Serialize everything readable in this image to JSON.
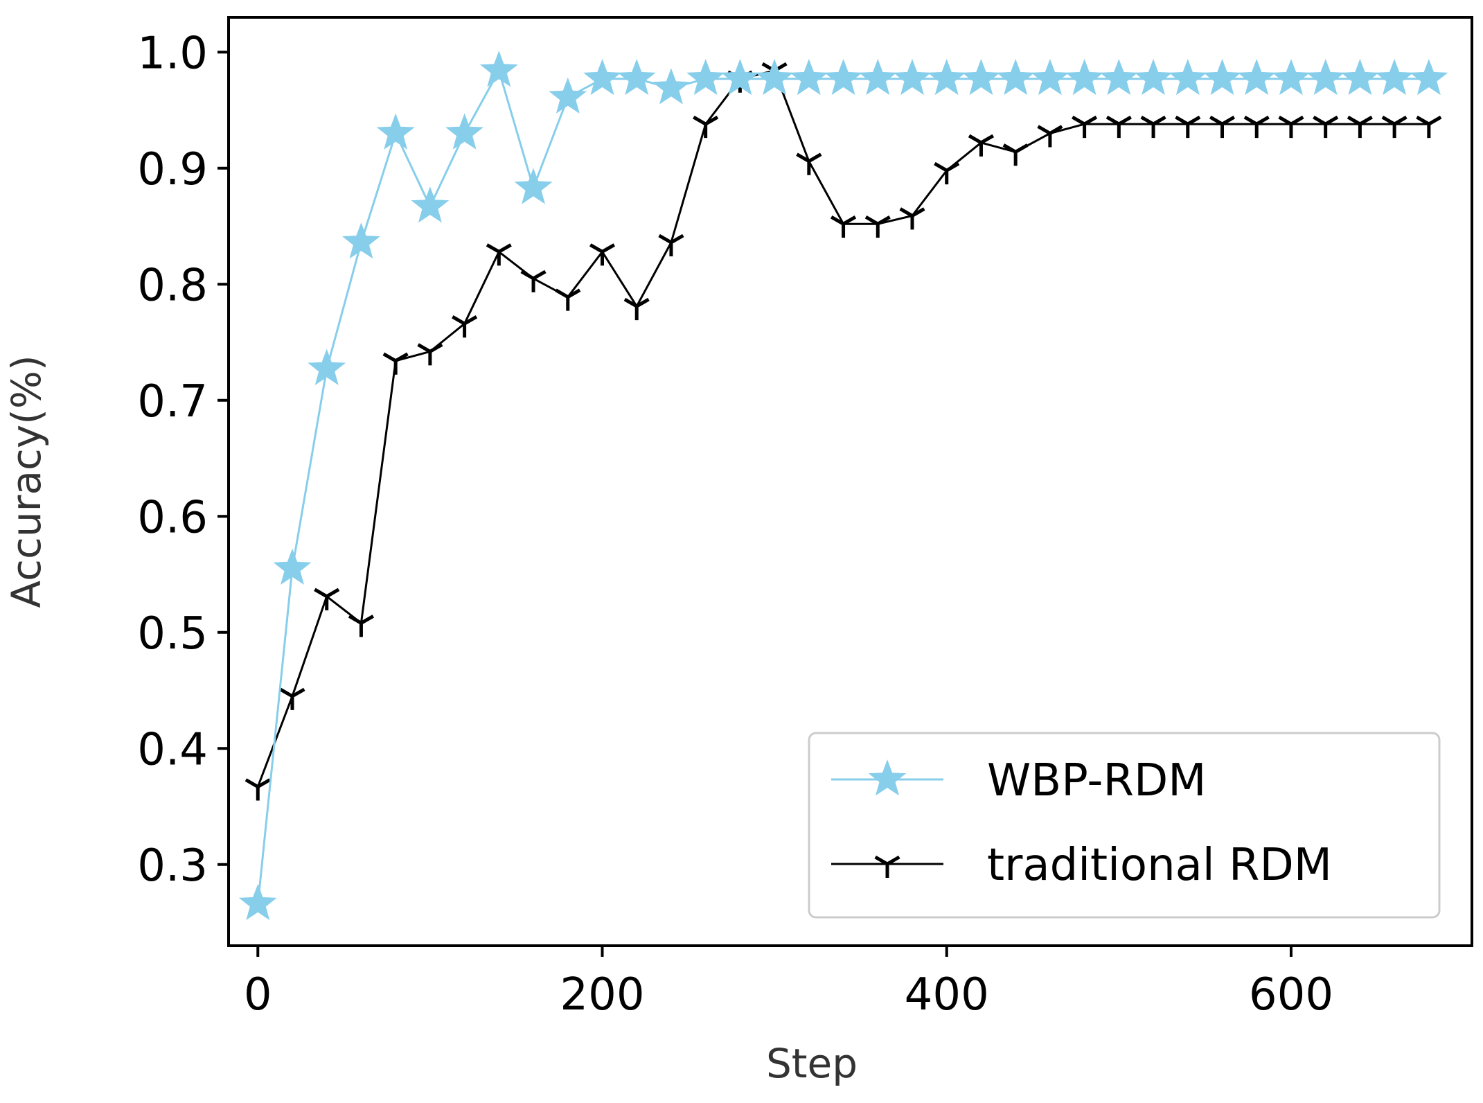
{
  "chart_data": {
    "type": "line",
    "title": "",
    "xlabel": "Step",
    "ylabel": "Accuracy(%)",
    "xlim": [
      -17,
      705
    ],
    "ylim": [
      0.23,
      1.03
    ],
    "xticks": [
      0,
      200,
      400,
      600
    ],
    "yticks": [
      0.3,
      0.4,
      0.5,
      0.6,
      0.7,
      0.8,
      0.9,
      1.0
    ],
    "xtick_labels": [
      "0",
      "200",
      "400",
      "600"
    ],
    "ytick_labels": [
      "0.3",
      "0.4",
      "0.5",
      "0.6",
      "0.7",
      "0.8",
      "0.9",
      "1.0"
    ],
    "grid": false,
    "legend_position": "lower-right",
    "x": [
      0,
      20,
      40,
      60,
      80,
      100,
      120,
      140,
      160,
      180,
      200,
      220,
      240,
      260,
      280,
      300,
      320,
      340,
      360,
      380,
      400,
      420,
      440,
      460,
      480,
      500,
      520,
      540,
      560,
      580,
      600,
      620,
      640,
      660,
      680
    ],
    "series": [
      {
        "name": "WBP-RDM",
        "color": "#87ceeb",
        "marker": "star",
        "values": [
          0.266,
          0.555,
          0.727,
          0.836,
          0.93,
          0.867,
          0.93,
          0.984,
          0.883,
          0.961,
          0.977,
          0.977,
          0.969,
          0.977,
          0.977,
          0.977,
          0.977,
          0.977,
          0.977,
          0.977,
          0.977,
          0.977,
          0.977,
          0.977,
          0.977,
          0.977,
          0.977,
          0.977,
          0.977,
          0.977,
          0.977,
          0.977,
          0.977,
          0.977,
          0.977
        ]
      },
      {
        "name": "traditional RDM",
        "color": "#000000",
        "marker": "tri_down",
        "values": [
          0.367,
          0.445,
          0.531,
          0.508,
          0.734,
          0.742,
          0.766,
          0.828,
          0.805,
          0.789,
          0.828,
          0.781,
          0.836,
          0.938,
          0.977,
          0.984,
          0.906,
          0.852,
          0.852,
          0.859,
          0.898,
          0.922,
          0.914,
          0.93,
          0.938,
          0.938,
          0.938,
          0.938,
          0.938,
          0.938,
          0.938,
          0.938,
          0.938,
          0.938,
          0.938
        ]
      }
    ]
  }
}
